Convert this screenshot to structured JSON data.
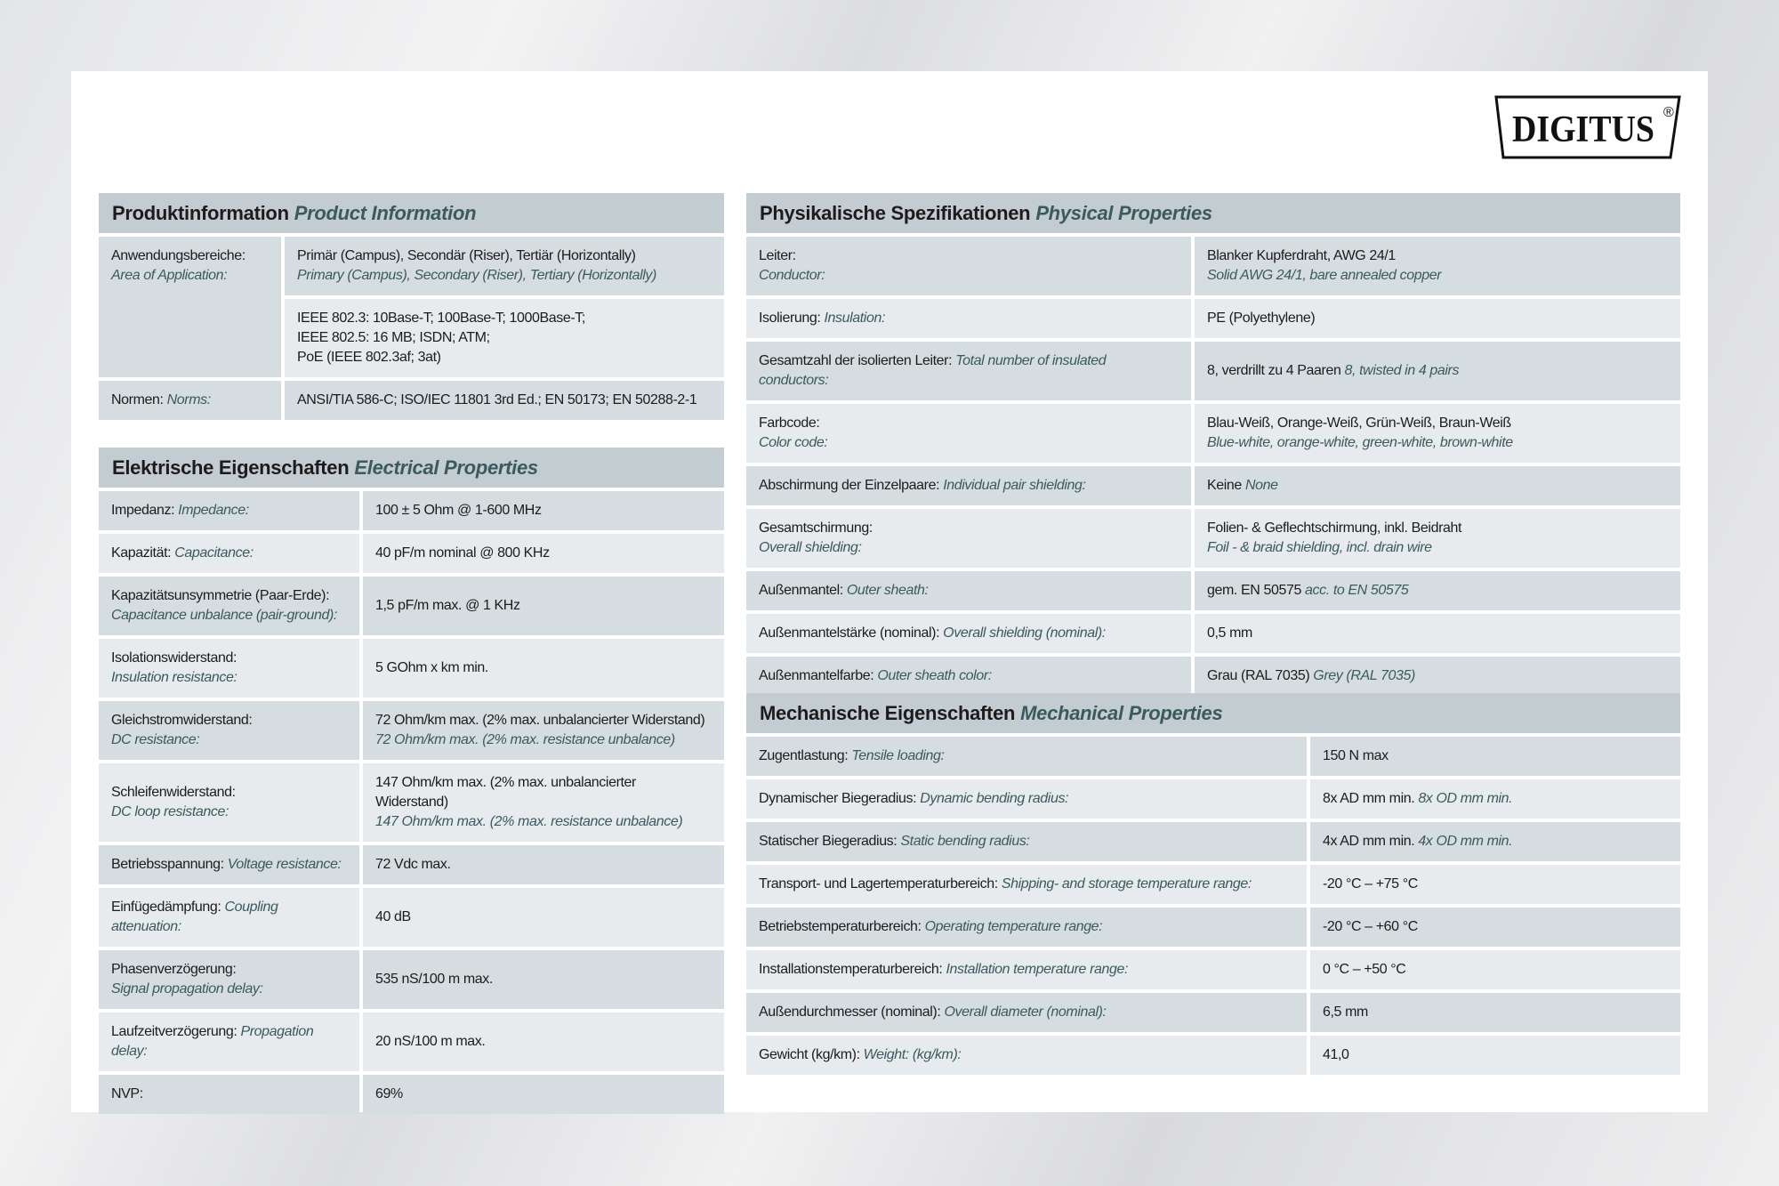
{
  "brand": {
    "logo_text": "DIGITUS",
    "registered": "®"
  },
  "colors": {
    "header_bg": "#c3ccd1",
    "row_dark": "#d6dde0",
    "row_light": "#e7ebed",
    "english_text": "#3b5a5e"
  },
  "product": {
    "title_de": "Produktinformation",
    "title_en": "Product Information",
    "application": {
      "label_de": "Anwendungsbereiche:",
      "label_en": "Area of Application:",
      "value1_de": "Primär (Campus), Secondär (Riser), Tertiär (Horizontally)",
      "value1_en": "Primary (Campus), Secondary (Riser), Tertiary (Horizontally)",
      "value2_lines": [
        "IEEE 802.3: 10Base-T; 100Base-T; 1000Base-T;",
        "IEEE 802.5: 16 MB; ISDN; ATM;",
        "PoE (IEEE 802.3af; 3at)"
      ]
    },
    "norms": {
      "label_de": "Normen:",
      "label_en": "Norms:",
      "value_de": "ANSI/TIA 586-C; ISO/IEC 11801 3rd Ed.; EN 50173; EN 50288-2-1"
    }
  },
  "electrical": {
    "title_de": "Elektrische Eigenschaften",
    "title_en": "Electrical Properties",
    "rows": [
      {
        "label_de": "Impedanz:",
        "label_en": "Impedance:",
        "value_de": "100 ± 5 Ohm @ 1-600 MHz",
        "value_en": "",
        "stacked": false
      },
      {
        "label_de": "Kapazität:",
        "label_en": "Capacitance:",
        "value_de": "40 pF/m nominal @ 800 KHz",
        "value_en": "",
        "stacked": false
      },
      {
        "label_de": "Kapazitätsunsymmetrie (Paar-Erde):",
        "label_en": "Capacitance unbalance (pair-ground):",
        "value_de": "1,5 pF/m max. @ 1 KHz",
        "value_en": "",
        "stacked": true
      },
      {
        "label_de": "Isolationswiderstand:",
        "label_en": "Insulation resistance:",
        "value_de": "5 GOhm x km min.",
        "value_en": "",
        "stacked": true
      },
      {
        "label_de": "Gleichstromwiderstand:",
        "label_en": "DC resistance:",
        "value_de": "72 Ohm/km max. (2% max. unbalancierter Widerstand)",
        "value_en": "72 Ohm/km max. (2% max. resistance unbalance)",
        "stacked": true
      },
      {
        "label_de": "Schleifenwiderstand:",
        "label_en": "DC loop resistance:",
        "value_de": "147 Ohm/km max. (2% max. unbalancierter Widerstand)",
        "value_en": "147 Ohm/km max. (2% max. resistance unbalance)",
        "stacked": true
      },
      {
        "label_de": "Betriebsspannung:",
        "label_en": "Voltage resistance:",
        "value_de": "72 Vdc max.",
        "value_en": "",
        "stacked": false
      },
      {
        "label_de": "Einfügedämpfung:",
        "label_en": "Coupling attenuation:",
        "value_de": "40 dB",
        "value_en": "",
        "stacked": false
      },
      {
        "label_de": "Phasenverzögerung:",
        "label_en": "Signal propagation delay:",
        "value_de": "535 nS/100 m max.",
        "value_en": "",
        "stacked": true
      },
      {
        "label_de": "Laufzeitverzögerung:",
        "label_en": "Propagation delay:",
        "value_de": "20 nS/100 m max.",
        "value_en": "",
        "stacked": false
      },
      {
        "label_de": "NVP:",
        "label_en": "",
        "value_de": "69%",
        "value_en": "",
        "stacked": false
      }
    ]
  },
  "physical": {
    "title_de": "Physikalische Spezifikationen",
    "title_en": "Physical Properties",
    "rows": [
      {
        "label_de": "Leiter:",
        "label_en": "Conductor:",
        "value_de": "Blanker Kupferdraht, AWG 24/1",
        "value_en": "Solid AWG 24/1, bare annealed copper",
        "stacked": true,
        "value_inline": false
      },
      {
        "label_de": "Isolierung:",
        "label_en": "Insulation:",
        "value_de": "PE (Polyethylene)",
        "value_en": "",
        "stacked": false,
        "value_inline": false
      },
      {
        "label_de": "Gesamtzahl der isolierten Leiter:",
        "label_en": "Total number of insulated conductors:",
        "value_de": "8, verdrillt zu 4 Paaren",
        "value_en": "8, twisted in 4 pairs",
        "stacked": false,
        "value_inline": true
      },
      {
        "label_de": "Farbcode:",
        "label_en": "Color code:",
        "value_de": "Blau-Weiß, Orange-Weiß, Grün-Weiß, Braun-Weiß",
        "value_en": "Blue-white, orange-white, green-white, brown-white",
        "stacked": true,
        "value_inline": false
      },
      {
        "label_de": "Abschirmung der Einzelpaare:",
        "label_en": "Individual pair shielding:",
        "value_de": "Keine",
        "value_en": "None",
        "stacked": false,
        "value_inline": true
      },
      {
        "label_de": "Gesamtschirmung:",
        "label_en": "Overall shielding:",
        "value_de": "Folien- & Geflechtschirmung, inkl. Beidraht",
        "value_en": "Foil - & braid shielding, incl. drain wire",
        "stacked": true,
        "value_inline": false
      },
      {
        "label_de": "Außenmantel:",
        "label_en": "Outer sheath:",
        "value_de": "gem. EN 50575",
        "value_en": "acc. to EN 50575",
        "stacked": false,
        "value_inline": true
      },
      {
        "label_de": "Außenmantelstärke (nominal):",
        "label_en": "Overall shielding (nominal):",
        "value_de": "0,5 mm",
        "value_en": "",
        "stacked": false,
        "value_inline": false
      },
      {
        "label_de": "Außenmantelfarbe:",
        "label_en": "Outer sheath color:",
        "value_de": "Grau (RAL 7035)",
        "value_en": "Grey (RAL 7035)",
        "stacked": false,
        "value_inline": true
      }
    ]
  },
  "mechanical": {
    "title_de": "Mechanische Eigenschaften",
    "title_en": "Mechanical Properties",
    "rows": [
      {
        "label_de": "Zugentlastung:",
        "label_en": "Tensile loading:",
        "value_de": "150 N max",
        "value_en": "",
        "stacked": false,
        "value_inline": false
      },
      {
        "label_de": "Dynamischer Biegeradius:",
        "label_en": "Dynamic bending radius:",
        "value_de": "8x AD mm min.",
        "value_en": "8x OD mm min.",
        "stacked": false,
        "value_inline": true
      },
      {
        "label_de": "Statischer Biegeradius:",
        "label_en": "Static bending radius:",
        "value_de": "4x AD mm min.",
        "value_en": "4x OD mm min.",
        "stacked": false,
        "value_inline": true
      },
      {
        "label_de": "Transport- und Lagertemperaturbereich:",
        "label_en": "Shipping- and storage temperature range:",
        "value_de": "-20 °C – +75 °C",
        "value_en": "",
        "stacked": false,
        "value_inline": false
      },
      {
        "label_de": "Betriebstemperaturbereich:",
        "label_en": "Operating temperature range:",
        "value_de": "-20 °C – +60 °C",
        "value_en": "",
        "stacked": false,
        "value_inline": false
      },
      {
        "label_de": "Installationstemperaturbereich:",
        "label_en": "Installation temperature range:",
        "value_de": "0 °C – +50 °C",
        "value_en": "",
        "stacked": false,
        "value_inline": false
      },
      {
        "label_de": "Außendurchmesser (nominal):",
        "label_en": "Overall diameter (nominal):",
        "value_de": "6,5 mm",
        "value_en": "",
        "stacked": false,
        "value_inline": false
      },
      {
        "label_de": "Gewicht (kg/km):",
        "label_en": "Weight: (kg/km):",
        "value_de": "41,0",
        "value_en": "",
        "stacked": false,
        "value_inline": false
      }
    ]
  }
}
